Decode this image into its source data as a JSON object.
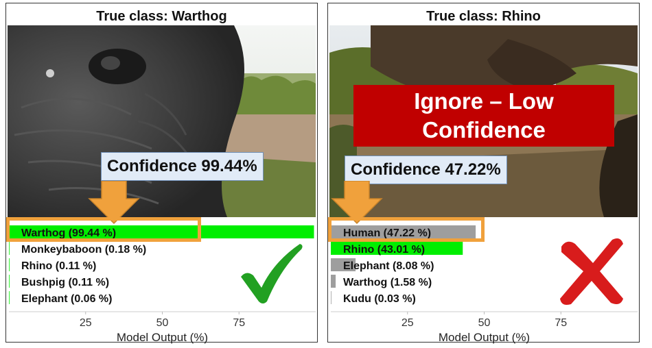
{
  "panels": [
    {
      "title": "True class: Warthog",
      "confidence_label": "Confidence 99.44%",
      "verdict_icon": "checkmark-icon",
      "photo_subject": "warthog-closeup"
    },
    {
      "title": "True class: Rhino",
      "confidence_label": "Confidence 47.22%",
      "warning": "Ignore – Low Confidence",
      "verdict_icon": "cross-icon",
      "photo_subject": "rhino-dark-closeup"
    }
  ],
  "colors": {
    "top_bar_green": "#00ee00",
    "second_bar_gray": "#9e9e9e",
    "highlight_orange": "#f0a13c",
    "warning_red": "#c00000",
    "check_green": "#22a022",
    "cross_red": "#d81c1c",
    "confidence_box": "#e1ebf7"
  },
  "chart_data": [
    {
      "type": "bar",
      "orientation": "horizontal",
      "categories": [
        "Warthog",
        "Monkeybaboon",
        "Rhino",
        "Bushpig",
        "Elephant"
      ],
      "labels": [
        "Warthog (99.44 %)",
        "Monkeybaboon (0.18 %)",
        "Rhino (0.11 %)",
        "Bushpig (0.11 %)",
        "Elephant (0.06 %)"
      ],
      "values": [
        99.44,
        0.18,
        0.11,
        0.11,
        0.06
      ],
      "bar_colors": [
        "#00ee00",
        "#00ee00",
        "#00ee00",
        "#00ee00",
        "#00ee00"
      ],
      "xticks": [
        25,
        50,
        75
      ],
      "xlabel": "Model Output (%)",
      "xlim": [
        0,
        100
      ]
    },
    {
      "type": "bar",
      "orientation": "horizontal",
      "categories": [
        "Human",
        "Rhino",
        "Elephant",
        "Warthog",
        "Kudu"
      ],
      "labels": [
        "Human (47.22 %)",
        "Rhino (43.01 %)",
        "Elephant (8.08 %)",
        "Warthog (1.58 %)",
        "Kudu (0.03 %)"
      ],
      "values": [
        47.22,
        43.01,
        8.08,
        1.58,
        0.03
      ],
      "bar_colors": [
        "#9e9e9e",
        "#00ee00",
        "#9e9e9e",
        "#9e9e9e",
        "#9e9e9e"
      ],
      "xticks": [
        25,
        50,
        75
      ],
      "xlabel": "Model Output (%)",
      "xlim": [
        0,
        100
      ]
    }
  ]
}
